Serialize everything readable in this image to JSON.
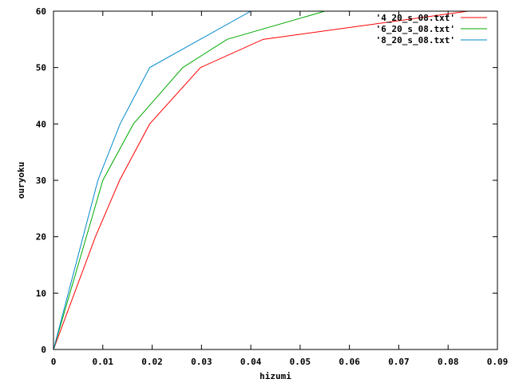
{
  "chart_data": {
    "type": "line",
    "title": "",
    "xlabel": "hizumi",
    "ylabel": "ouryoku",
    "xlim": [
      0,
      0.09
    ],
    "ylim": [
      0,
      60
    ],
    "xticks": [
      0,
      0.01,
      0.02,
      0.03,
      0.04,
      0.05,
      0.06,
      0.07,
      0.08,
      0.09
    ],
    "yticks": [
      0,
      10,
      20,
      30,
      40,
      50,
      60
    ],
    "xtick_labels": [
      "0",
      "0.01",
      "0.02",
      "0.03",
      "0.04",
      "0.05",
      "0.06",
      "0.07",
      "0.08",
      "0.09"
    ],
    "ytick_labels": [
      "0",
      "10",
      "20",
      "30",
      "40",
      "50",
      "60"
    ],
    "grid": false,
    "legend_position": "top-right",
    "series": [
      {
        "name": "'4_20_s_08.txt'",
        "color": "#ff0000",
        "x": [
          0,
          0.0085,
          0.0134,
          0.0195,
          0.0298,
          0.0425,
          0.084
        ],
        "y": [
          0,
          20,
          30,
          40,
          50,
          55,
          60
        ]
      },
      {
        "name": "'6_20_s_08.txt'",
        "color": "#00aa00",
        "x": [
          0,
          0.01,
          0.0162,
          0.0262,
          0.0352,
          0.055
        ],
        "y": [
          0,
          30,
          40,
          50,
          55,
          60
        ]
      },
      {
        "name": "'8_20_s_08.txt'",
        "color": "#0088cc",
        "x": [
          0,
          0.009,
          0.0135,
          0.0195,
          0.04
        ],
        "y": [
          0,
          30,
          40,
          50,
          60
        ]
      }
    ]
  }
}
